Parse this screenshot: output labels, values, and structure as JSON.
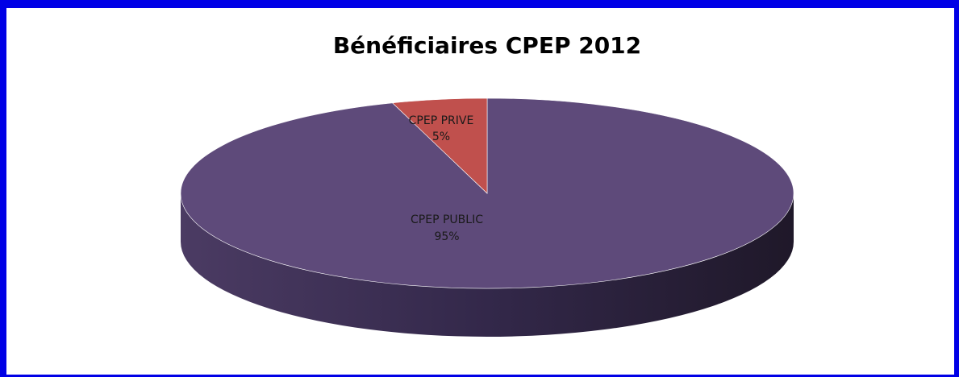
{
  "chart_data": {
    "type": "pie",
    "title": "Bénéficiaires CPEP 2012",
    "categories": [
      "CPEP PUBLIC",
      "CPEP PRIVE"
    ],
    "values": [
      95,
      5
    ],
    "value_labels": [
      "95%",
      "5%"
    ],
    "colors": [
      "#5e4a7a",
      "#c0504d"
    ]
  }
}
